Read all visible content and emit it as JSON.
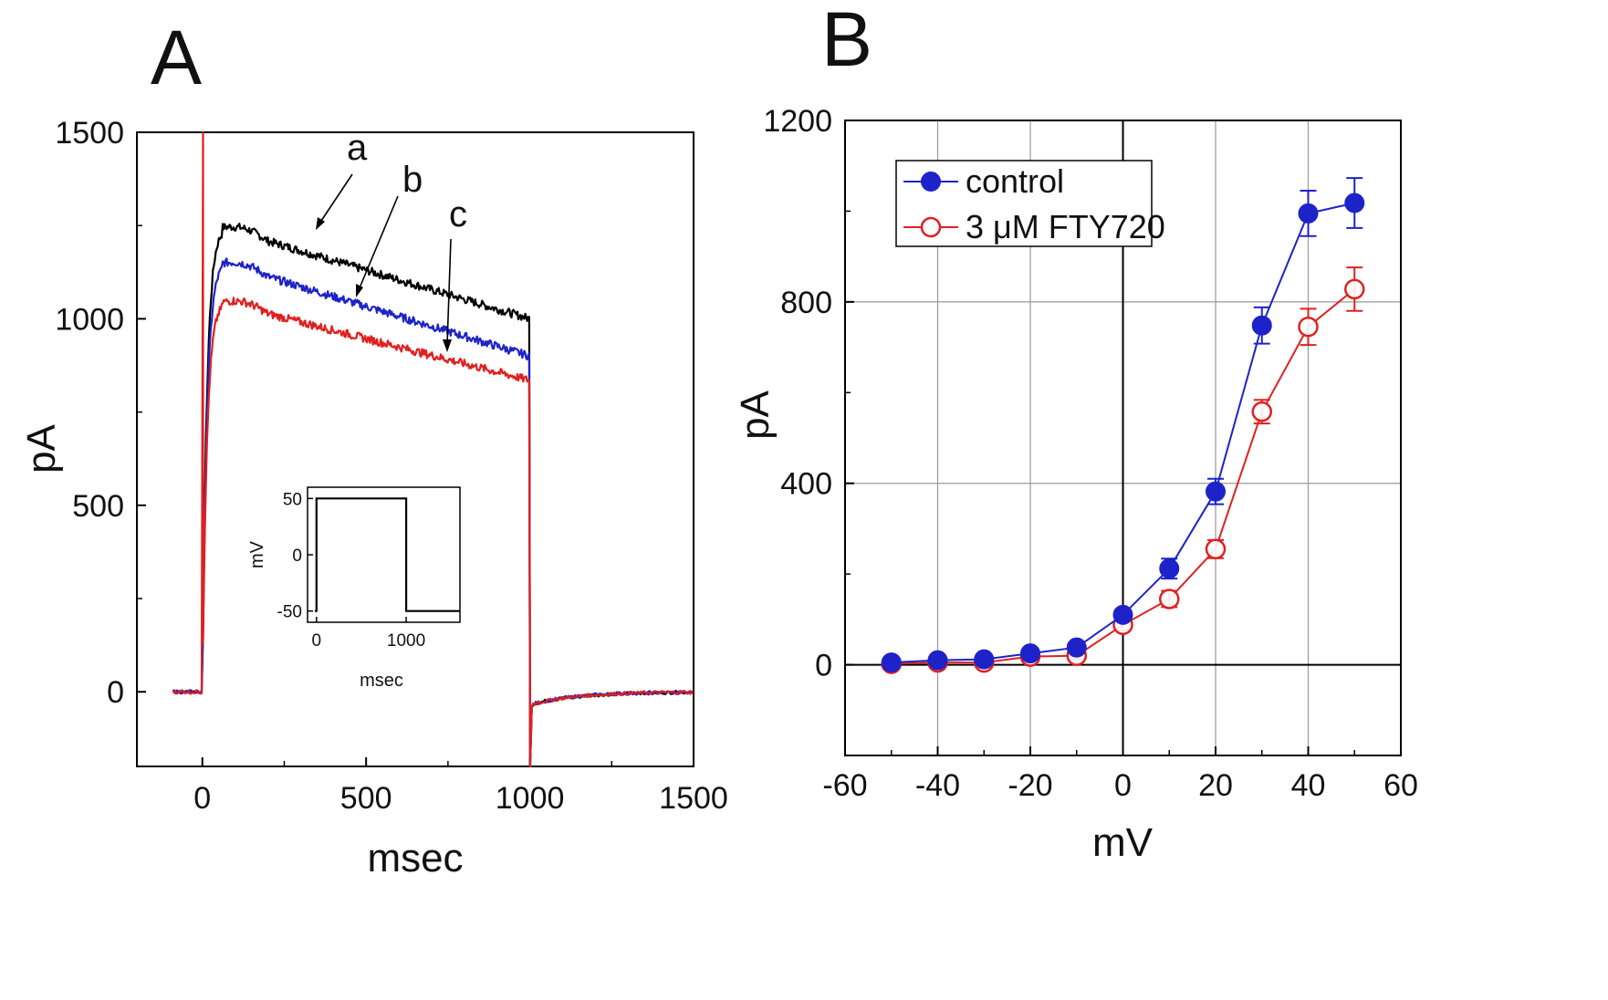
{
  "chart_data": [
    {
      "panel": "A",
      "type": "line",
      "xlabel": "msec",
      "ylabel": "pA",
      "xlim": [
        -200,
        1500
      ],
      "ylim": [
        -200,
        1500
      ],
      "xticks": [
        0,
        500,
        1000,
        1500
      ],
      "yticks": [
        0,
        500,
        1000,
        1500
      ],
      "trace_labels": [
        "a",
        "b",
        "c"
      ],
      "series": [
        {
          "name": "a",
          "color": "#000000",
          "baseline": 0,
          "peak": 1245,
          "end": 1000,
          "tail": 0
        },
        {
          "name": "b",
          "color": "#1d23c9",
          "baseline": 0,
          "peak": 1150,
          "end": 900,
          "tail": 0
        },
        {
          "name": "c",
          "color": "#e02020",
          "baseline": 0,
          "peak": 1045,
          "end": 835,
          "tail": 0
        }
      ],
      "step": {
        "start_ms": 0,
        "end_ms": 1000,
        "pre_ms": -90,
        "post_ms": 1500
      },
      "inset": {
        "type": "line",
        "xlabel": "msec",
        "ylabel": "mV",
        "xlim": [
          -100,
          1600
        ],
        "ylim": [
          -60,
          60
        ],
        "xticks": [
          0,
          1000
        ],
        "yticks": [
          -50,
          0,
          50
        ],
        "x": [
          -20,
          0,
          0,
          1000,
          1000,
          1600
        ],
        "y": [
          -50,
          -50,
          50,
          50,
          -50,
          -50
        ]
      }
    },
    {
      "panel": "B",
      "type": "line",
      "xlabel": "mV",
      "ylabel": "pA",
      "xlim": [
        -60,
        60
      ],
      "ylim": [
        -200,
        1200
      ],
      "xticks": [
        -60,
        -40,
        -20,
        0,
        20,
        40,
        60
      ],
      "yticks": [
        0,
        400,
        800,
        1200
      ],
      "grid": true,
      "legend_position": "top-left",
      "x": [
        -50,
        -40,
        -30,
        -20,
        -10,
        0,
        10,
        20,
        30,
        40,
        50
      ],
      "series": [
        {
          "name": "control",
          "color": "#1d23c9",
          "marker": "filled-circle",
          "values": [
            5,
            10,
            12,
            25,
            38,
            110,
            212,
            382,
            748,
            995,
            1018
          ],
          "errors": [
            6,
            6,
            6,
            8,
            8,
            12,
            22,
            28,
            40,
            50,
            55
          ]
        },
        {
          "name": "3 μM FTY720",
          "color": "#e02020",
          "marker": "open-circle",
          "values": [
            2,
            5,
            5,
            18,
            20,
            88,
            145,
            255,
            558,
            745,
            828
          ],
          "errors": [
            6,
            6,
            6,
            8,
            8,
            12,
            18,
            20,
            26,
            40,
            48
          ]
        }
      ]
    }
  ]
}
